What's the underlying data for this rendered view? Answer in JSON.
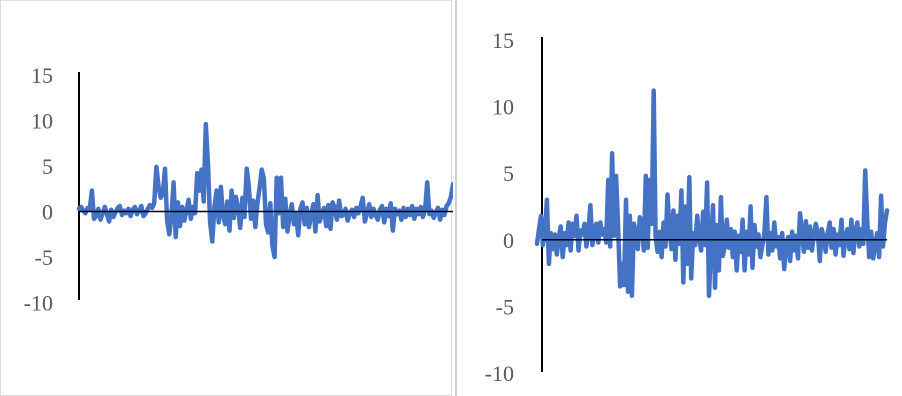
{
  "chart_data": [
    {
      "type": "line",
      "title": "",
      "xlabel": "",
      "ylabel": "",
      "ylim": [
        -10,
        15
      ],
      "yticks": [
        "15",
        "10",
        "5",
        "0",
        "-5",
        "-10"
      ],
      "grid": false,
      "legend": "none",
      "series_color": "#4472c4",
      "axis_color": "#000000",
      "series": [
        {
          "values": [
            0.3,
            0.5,
            0.1,
            -0.2,
            0.4,
            0.2,
            2.3,
            -0.8,
            -0.5,
            0.3,
            -0.9,
            -0.2,
            0.5,
            -0.3,
            -1.1,
            0.2,
            -0.6,
            -0.1,
            0.4,
            0.6,
            -0.4,
            0.1,
            -0.2,
            0.3,
            -0.5,
            0.2,
            0.5,
            -0.3,
            0.1,
            0.6,
            -0.5,
            -0.2,
            0.3,
            0.7,
            0.4,
            0.9,
            4.9,
            2.8,
            1.5,
            2.0,
            4.7,
            -1.0,
            -2.5,
            -0.5,
            3.2,
            -2.8,
            1.0,
            -1.6,
            0.5,
            -1.0,
            0.2,
            1.3,
            -0.8,
            0.5,
            -0.2,
            4.2,
            2.3,
            4.6,
            1.1,
            9.6,
            5.2,
            -1.2,
            -3.3,
            0.5,
            2.3,
            -1.2,
            2.7,
            -0.5,
            -1.4,
            1.1,
            -2.1,
            2.3,
            -0.7,
            1.6,
            0.4,
            -1.8,
            1.5,
            -0.6,
            4.7,
            2.8,
            -0.8,
            1.2,
            -1.7,
            0.9,
            2.6,
            4.6,
            3.6,
            -1.4,
            -2.3,
            0.9,
            -3.8,
            -5.0,
            3.7,
            -0.2,
            3.7,
            -1.7,
            1.4,
            -2.2,
            -0.4,
            0.8,
            -1.4,
            -0.3,
            -2.6,
            0.3,
            1.0,
            -1.4,
            0.4,
            -1.7,
            -0.4,
            0.8,
            -2.2,
            1.8,
            -1.1,
            -0.3,
            0.4,
            -1.6,
            0.7,
            -1.9,
            1.0,
            0.4,
            -0.9,
            1.2,
            -0.5,
            -0.4,
            0.3,
            -1.0,
            -0.2,
            0.2,
            -0.6,
            0.4,
            -0.2,
            0.6,
            1.5,
            -1.1,
            -0.2,
            0.8,
            -0.6,
            0.3,
            -0.4,
            -0.9,
            0.2,
            0.6,
            -1.2,
            0.3,
            -0.5,
            0.9,
            -2.1,
            0.3,
            -0.3,
            0.1,
            -0.9,
            0.4,
            -0.6,
            0.3,
            -0.4,
            0.6,
            -0.8,
            0.3,
            -0.3,
            0.5,
            -0.6,
            0.2,
            3.2,
            -0.3,
            0.1,
            -0.7,
            -0.1,
            0.4,
            -0.9,
            0.2,
            -0.4,
            0.6,
            0.9,
            1.6,
            3.0
          ]
        }
      ]
    },
    {
      "type": "line",
      "title": "",
      "xlabel": "",
      "ylabel": "",
      "ylim": [
        -10,
        15
      ],
      "yticks": [
        "15",
        "10",
        "5",
        "0",
        "-5",
        "-10"
      ],
      "grid": false,
      "legend": "none",
      "series_color": "#4472c4",
      "axis_color": "#000000",
      "series": [
        {
          "values": [
            -0.3,
            0.8,
            1.8,
            -0.4,
            0.6,
            3.0,
            -1.8,
            0.5,
            -0.7,
            0.4,
            -1.1,
            0.2,
            1.0,
            -1.3,
            0.5,
            -0.4,
            1.3,
            -0.8,
            1.2,
            0.3,
            1.8,
            -0.8,
            0.7,
            0.4,
            1.2,
            -0.5,
            0.6,
            2.6,
            -0.4,
            0.6,
            1.2,
            -0.2,
            1.3,
            0.4,
            0.8,
            -0.2,
            4.5,
            -0.5,
            6.5,
            0.3,
            4.8,
            1.0,
            -3.5,
            -1.8,
            -3.4,
            3.0,
            -3.9,
            1.8,
            -4.2,
            1.2,
            0.5,
            -0.7,
            1.7,
            1.2,
            -0.8,
            4.8,
            -0.6,
            4.5,
            1.2,
            11.2,
            0.2,
            -0.9,
            0.6,
            -1.3,
            1.3,
            -0.5,
            3.4,
            0.8,
            -0.7,
            2.2,
            -1.5,
            1.8,
            -0.3,
            3.7,
            -3.2,
            2.5,
            -1.8,
            4.7,
            -2.9,
            0.5,
            -0.4,
            1.8,
            0.2,
            -0.8,
            2.1,
            -0.4,
            4.3,
            -4.2,
            -0.3,
            2.6,
            -3.6,
            1.1,
            -2.3,
            3.2,
            -1.2,
            -0.4,
            1.5,
            -0.6,
            0.8,
            -1.3,
            0.6,
            -2.3,
            0.3,
            -0.9,
            1.5,
            -2.3,
            0.6,
            -1.1,
            2.5,
            -2.1,
            1.1,
            -0.5,
            0.4,
            -1.3,
            -0.4,
            0.5,
            3.2,
            -1.1,
            0.5,
            -0.8,
            1.3,
            -0.5,
            0.2,
            -1.4,
            0.5,
            -2.2,
            -0.3,
            0.2,
            -1.6,
            0.6,
            -0.8,
            0.3,
            -1.4,
            2.0,
            0.5,
            -0.9,
            1.4,
            -0.6,
            1.0,
            -0.8,
            0.3,
            1.2,
            0.5,
            -1.6,
            0.8,
            0.2,
            -0.9,
            0.5,
            1.3,
            -0.6,
            0.8,
            -1.1,
            0.4,
            -0.4,
            1.5,
            -1.2,
            0.3,
            0.8,
            -0.7,
            1.5,
            -1.0,
            0.6,
            1.3,
            -0.5,
            0.8,
            -0.3,
            5.2,
            1.5,
            -1.3,
            0.6,
            -1.4,
            -0.4,
            0.5,
            -1.3,
            3.3,
            -0.5,
            1.3,
            2.2
          ]
        }
      ]
    }
  ]
}
